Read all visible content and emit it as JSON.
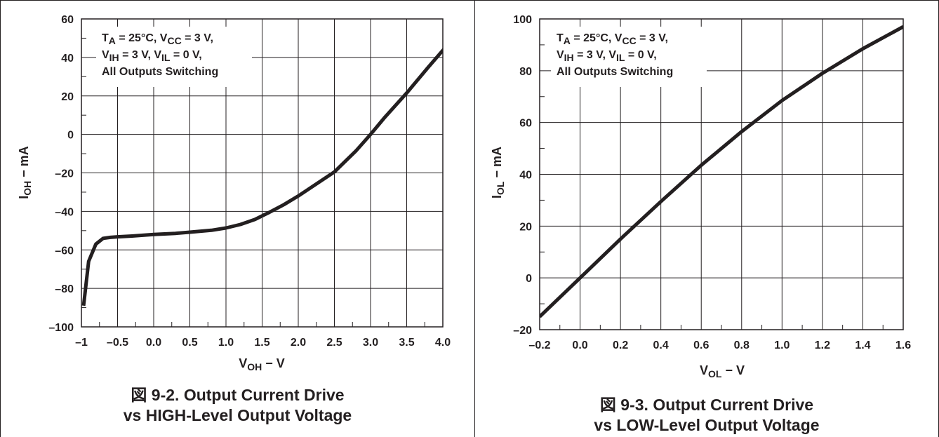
{
  "chart_data": [
    {
      "type": "line",
      "xlabel": "VOH − V",
      "xlabel_main": "V",
      "xlabel_sub": "OH",
      "xlabel_unit": " − V",
      "ylabel_main": "I",
      "ylabel_sub": "OH",
      "ylabel_unit": " − mA",
      "xlim": [
        -1,
        4
      ],
      "ylim": [
        -100,
        60
      ],
      "x_ticks": [
        -1,
        -0.5,
        0,
        0.5,
        1,
        1.5,
        2,
        2.5,
        3,
        3.5,
        4
      ],
      "x_tick_labels": [
        "–1",
        "–0.5",
        "0.0",
        "0.5",
        "1.0",
        "1.5",
        "2.0",
        "2.5",
        "3.0",
        "3.5",
        "4.0"
      ],
      "y_ticks": [
        -100,
        -80,
        -60,
        -40,
        -20,
        0,
        20,
        40,
        60
      ],
      "y_tick_labels": [
        "–100",
        "–80",
        "–60",
        "–40",
        "–20",
        "0",
        "20",
        "40",
        "60"
      ],
      "grid": true,
      "annotation": [
        {
          "parts": [
            [
              "T",
              ""
            ],
            [
              "A",
              "sub"
            ],
            [
              " = 25°C, V",
              ""
            ],
            [
              "CC",
              "sub"
            ],
            [
              " = 3 V,",
              ""
            ]
          ]
        },
        {
          "parts": [
            [
              "V",
              ""
            ],
            [
              "IH",
              "sub"
            ],
            [
              " = 3 V, V",
              ""
            ],
            [
              "IL",
              "sub"
            ],
            [
              " = 0 V,",
              ""
            ]
          ]
        },
        {
          "parts": [
            [
              "All Outputs Switching",
              ""
            ]
          ]
        }
      ],
      "series": [
        {
          "x": [
            -0.97,
            -0.9,
            -0.8,
            -0.7,
            -0.6,
            -0.5,
            -0.3,
            0,
            0.3,
            0.5,
            0.8,
            1.0,
            1.2,
            1.4,
            1.6,
            1.8,
            2.0,
            2.2,
            2.5,
            2.8,
            3.0,
            3.2,
            3.5,
            3.8,
            4.1
          ],
          "y": [
            -89,
            -66,
            -57,
            -54,
            -53.5,
            -53.2,
            -52.8,
            -52,
            -51.4,
            -50.8,
            -49.8,
            -48.6,
            -46.8,
            -44.2,
            -40.5,
            -36.5,
            -32,
            -27,
            -19.5,
            -8.5,
            0,
            9,
            21.5,
            35,
            48
          ]
        }
      ]
    },
    {
      "type": "line",
      "xlabel": "VOL − V",
      "xlabel_main": "V",
      "xlabel_sub": "OL",
      "xlabel_unit": " − V",
      "ylabel_main": "I",
      "ylabel_sub": "OL",
      "ylabel_unit": " − mA",
      "xlim": [
        -0.2,
        1.6
      ],
      "ylim": [
        -20,
        100
      ],
      "x_ticks": [
        -0.2,
        0,
        0.2,
        0.4,
        0.6,
        0.8,
        1.0,
        1.2,
        1.4,
        1.6
      ],
      "x_tick_labels": [
        "–0.2",
        "0.0",
        "0.2",
        "0.4",
        "0.6",
        "0.8",
        "1.0",
        "1.2",
        "1.4",
        "1.6"
      ],
      "y_ticks": [
        -20,
        0,
        20,
        40,
        60,
        80,
        100
      ],
      "y_tick_labels": [
        "–20",
        "0",
        "20",
        "40",
        "60",
        "80",
        "100"
      ],
      "grid": true,
      "annotation": [
        {
          "parts": [
            [
              "T",
              ""
            ],
            [
              "A",
              "sub"
            ],
            [
              " = 25°C, V",
              ""
            ],
            [
              "CC",
              "sub"
            ],
            [
              " = 3 V,",
              ""
            ]
          ]
        },
        {
          "parts": [
            [
              "V",
              ""
            ],
            [
              "IH",
              "sub"
            ],
            [
              " = 3 V, V",
              ""
            ],
            [
              "IL",
              "sub"
            ],
            [
              " = 0 V,",
              ""
            ]
          ]
        },
        {
          "parts": [
            [
              "All Outputs Switching",
              ""
            ]
          ]
        }
      ],
      "series": [
        {
          "x": [
            -0.2,
            0,
            0.2,
            0.4,
            0.6,
            0.8,
            1.0,
            1.2,
            1.4,
            1.6
          ],
          "y": [
            -15,
            0,
            15,
            29.5,
            43.5,
            56.5,
            68.5,
            79,
            88.5,
            97
          ]
        }
      ]
    }
  ],
  "captions": {
    "left_line1": "図 9-2. Output Current Drive",
    "left_line2": "vs HIGH-Level Output Voltage",
    "right_line1": "図 9-3. Output Current Drive",
    "right_line2": "vs LOW-Level Output Voltage"
  },
  "colors": {
    "ink": "#231f20",
    "background": "#ffffff"
  }
}
